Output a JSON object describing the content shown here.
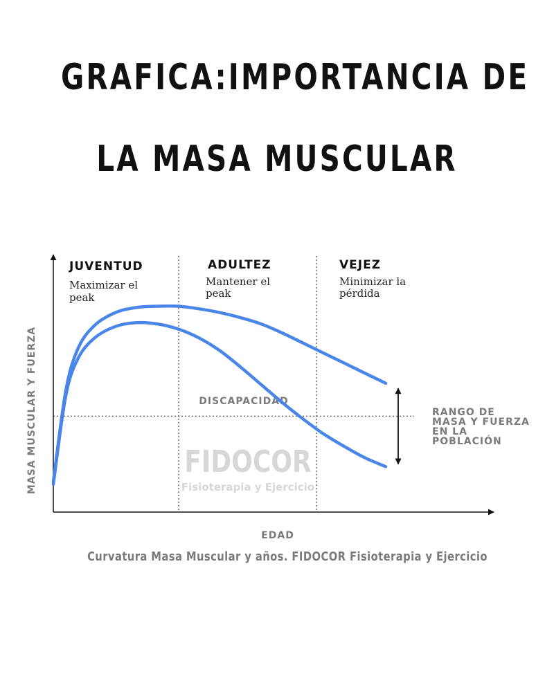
{
  "title": {
    "line1": "GRAFICA:IMPORTANCIA DE",
    "line2": "LA MASA MUSCULAR"
  },
  "caption": "Curvatura Masa Muscular y años. FIDOCOR Fisioterapia y Ejercicio",
  "watermark": {
    "brand": "FIDOCOR",
    "tagline": "Fisioterapia y Ejercicio"
  },
  "colors": {
    "curve": "#4a86e8",
    "axis": "#111111",
    "label_gray": "#7b7b7b"
  },
  "chart_data": {
    "type": "line",
    "xlabel": "EDAD",
    "ylabel": "MASA MUSCULAR Y FUERZA",
    "axis_ranges": {
      "x": [
        0,
        100
      ],
      "y": [
        0,
        100
      ]
    },
    "grid": false,
    "sections": [
      {
        "title": "JUVENTUD",
        "subtitle_lines": [
          "Maximizar el",
          "peak"
        ],
        "x_range": [
          0,
          29
        ]
      },
      {
        "title": "ADULTEZ",
        "subtitle_lines": [
          "Mantener el",
          "peak"
        ],
        "x_range": [
          29,
          60
        ]
      },
      {
        "title": "VEJEZ",
        "subtitle_lines": [
          "Minimizar la",
          "pérdida"
        ],
        "x_range": [
          60,
          100
        ]
      }
    ],
    "threshold": {
      "label": "DISCAPACIDAD",
      "y": 38
    },
    "range_annotation": {
      "label_lines": [
        "RANGO DE",
        "MASA Y FUERZA",
        "EN LA",
        "POBLACIÓN"
      ],
      "x": 83,
      "y_range": [
        19,
        49
      ]
    },
    "series": [
      {
        "x": [
          0,
          3,
          6,
          10,
          15,
          20,
          25,
          30,
          35,
          40,
          45,
          50,
          55,
          60,
          65,
          70,
          75,
          80
        ],
        "y": [
          12,
          48,
          65,
          74,
          79,
          81,
          81.5,
          81.5,
          80.5,
          79,
          77,
          74.5,
          71,
          67,
          63,
          59,
          55,
          51
        ]
      },
      {
        "x": [
          0,
          3,
          6,
          10,
          15,
          20,
          25,
          30,
          35,
          40,
          45,
          50,
          55,
          60,
          65,
          70,
          75,
          80
        ],
        "y": [
          11,
          46,
          61,
          69,
          73.5,
          75,
          74.5,
          72.5,
          69,
          64,
          57.5,
          50.5,
          43.5,
          37,
          31,
          26,
          21.5,
          18
        ]
      }
    ]
  }
}
